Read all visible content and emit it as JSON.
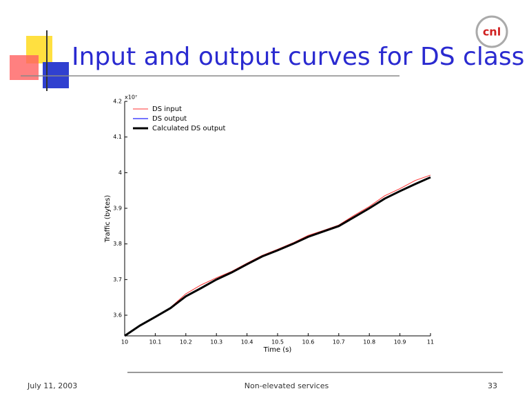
{
  "slide": {
    "title": "Input and output curves for DS class",
    "logo": "cnl",
    "date": "July 11, 2003",
    "footer": "Non-elevated services",
    "page_number": "33"
  },
  "chart_data": {
    "type": "line",
    "x_label": "Time (s)",
    "y_label": "Traffic (bytes)",
    "y_scale_text": "x10⁷",
    "x": [
      10,
      10.05,
      10.1,
      10.15,
      10.2,
      10.25,
      10.3,
      10.35,
      10.4,
      10.45,
      10.5,
      10.55,
      10.6,
      10.65,
      10.7,
      10.75,
      10.8,
      10.85,
      10.9,
      10.95,
      11
    ],
    "series": [
      {
        "name": "DS input",
        "color": "#ff3030",
        "width": 1,
        "values": [
          3.542,
          3.571,
          3.596,
          3.622,
          3.66,
          3.685,
          3.705,
          3.723,
          3.746,
          3.768,
          3.785,
          3.803,
          3.824,
          3.838,
          3.853,
          3.88,
          3.905,
          3.935,
          3.955,
          3.978,
          3.993
        ]
      },
      {
        "name": "DS output",
        "color": "#2020ff",
        "width": 1.2,
        "values": [
          3.542,
          3.571,
          3.595,
          3.62,
          3.653,
          3.676,
          3.7,
          3.72,
          3.743,
          3.765,
          3.782,
          3.8,
          3.82,
          3.835,
          3.85,
          3.875,
          3.9,
          3.927,
          3.948,
          3.968,
          3.987
        ]
      },
      {
        "name": "Calculated DS output",
        "color": "#000000",
        "width": 3,
        "values": [
          3.542,
          3.571,
          3.595,
          3.62,
          3.653,
          3.676,
          3.7,
          3.72,
          3.743,
          3.765,
          3.782,
          3.8,
          3.82,
          3.835,
          3.85,
          3.875,
          3.9,
          3.927,
          3.948,
          3.968,
          3.987
        ]
      }
    ],
    "xlim": [
      10,
      11
    ],
    "xticks": [
      10,
      10.1,
      10.2,
      10.3,
      10.4,
      10.5,
      10.6,
      10.7,
      10.8,
      10.9,
      11
    ],
    "ylim": [
      3.542,
      4.2
    ],
    "yticks": [
      3.6,
      3.7,
      3.8,
      3.9,
      4,
      4.1,
      4.2
    ],
    "legend": "upper left",
    "grid": false
  }
}
